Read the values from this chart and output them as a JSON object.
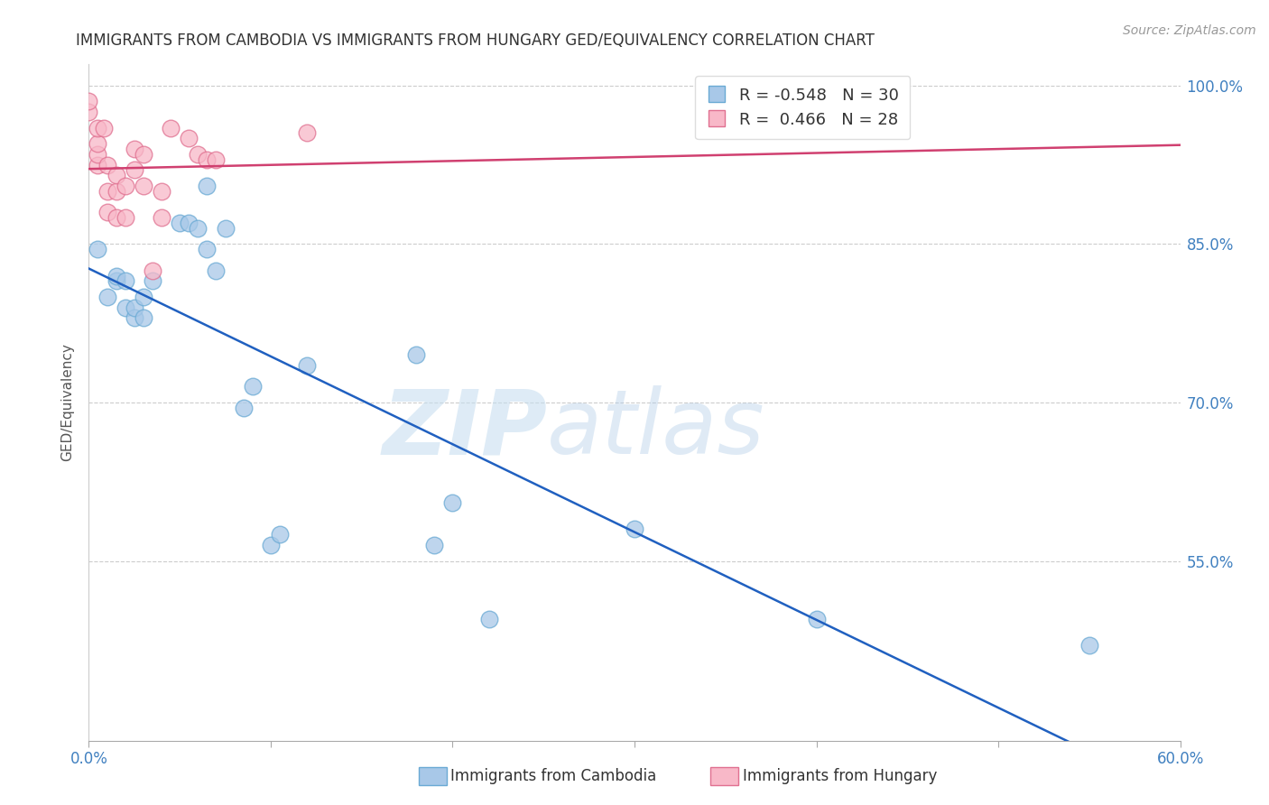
{
  "title": "IMMIGRANTS FROM CAMBODIA VS IMMIGRANTS FROM HUNGARY GED/EQUIVALENCY CORRELATION CHART",
  "source": "Source: ZipAtlas.com",
  "ylabel": "GED/Equivalency",
  "xlabel_cambodia": "Immigrants from Cambodia",
  "xlabel_hungary": "Immigrants from Hungary",
  "xlim": [
    0.0,
    0.6
  ],
  "ylim": [
    0.38,
    1.02
  ],
  "yticks": [
    0.55,
    0.7,
    0.85,
    1.0
  ],
  "ytick_labels": [
    "55.0%",
    "70.0%",
    "85.0%",
    "100.0%"
  ],
  "xtick_labels": [
    "0.0%",
    "",
    "",
    "",
    "",
    "",
    "60.0%"
  ],
  "cambodia_color": "#a8c8e8",
  "cambodia_edge": "#6aaad4",
  "hungary_color": "#f8b8c8",
  "hungary_edge": "#e07090",
  "regression_cambodia_color": "#2060c0",
  "regression_hungary_color": "#d04070",
  "cambodia_R": -0.548,
  "cambodia_N": 30,
  "hungary_R": 0.466,
  "hungary_N": 28,
  "cambodia_x": [
    0.005,
    0.01,
    0.015,
    0.015,
    0.02,
    0.02,
    0.025,
    0.025,
    0.03,
    0.03,
    0.035,
    0.05,
    0.055,
    0.06,
    0.065,
    0.065,
    0.07,
    0.075,
    0.085,
    0.09,
    0.1,
    0.105,
    0.12,
    0.18,
    0.19,
    0.2,
    0.22,
    0.3,
    0.4,
    0.55
  ],
  "cambodia_y": [
    0.845,
    0.8,
    0.815,
    0.82,
    0.79,
    0.815,
    0.78,
    0.79,
    0.78,
    0.8,
    0.815,
    0.87,
    0.87,
    0.865,
    0.845,
    0.905,
    0.825,
    0.865,
    0.695,
    0.715,
    0.565,
    0.575,
    0.735,
    0.745,
    0.565,
    0.605,
    0.495,
    0.58,
    0.495,
    0.47
  ],
  "hungary_x": [
    0.0,
    0.0,
    0.005,
    0.005,
    0.005,
    0.005,
    0.008,
    0.01,
    0.01,
    0.01,
    0.015,
    0.015,
    0.015,
    0.02,
    0.02,
    0.025,
    0.025,
    0.03,
    0.03,
    0.035,
    0.04,
    0.04,
    0.045,
    0.055,
    0.06,
    0.065,
    0.07,
    0.12
  ],
  "hungary_y": [
    0.975,
    0.985,
    0.925,
    0.935,
    0.945,
    0.96,
    0.96,
    0.88,
    0.9,
    0.925,
    0.875,
    0.9,
    0.915,
    0.875,
    0.905,
    0.92,
    0.94,
    0.905,
    0.935,
    0.825,
    0.875,
    0.9,
    0.96,
    0.95,
    0.935,
    0.93,
    0.93,
    0.955
  ],
  "watermark_zip": "ZIP",
  "watermark_atlas": "atlas",
  "background_color": "#ffffff",
  "grid_color": "#cccccc"
}
